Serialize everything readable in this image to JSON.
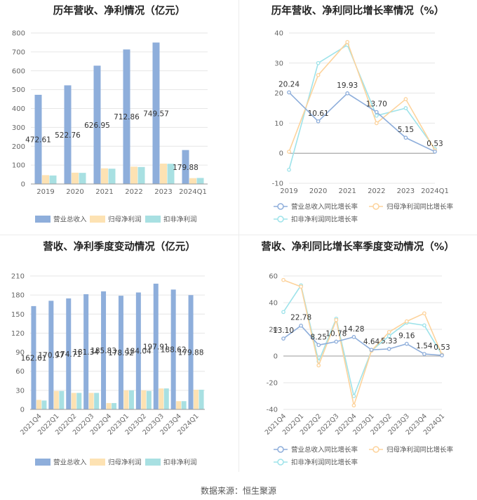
{
  "source": "数据来源：恒生聚源",
  "colors": {
    "revenue": "#8eaedb",
    "netprofit": "#fde2b3",
    "deducted": "#a8e0e2",
    "line_revenue": "#8eaedb",
    "line_netprofit": "#fdd39c",
    "line_deducted": "#9ee3ea"
  },
  "chart_data": [
    {
      "type": "bar",
      "title": "历年营收、净利情况（亿元）",
      "categories": [
        "2019",
        "2020",
        "2021",
        "2022",
        "2023",
        "2024Q1"
      ],
      "ylim": [
        0,
        800
      ],
      "yticks": [
        0,
        100,
        200,
        300,
        400,
        500,
        600,
        700,
        800
      ],
      "series": [
        {
          "name": "营业总收入",
          "values": [
            472.61,
            522.76,
            626.95,
            712.86,
            749.57,
            179.88
          ],
          "labels": [
            "472.61",
            "522.76",
            "626.95",
            "712.86",
            "749.57",
            "179.88"
          ]
        },
        {
          "name": "归母净利润",
          "values": [
            47,
            60,
            83,
            92,
            108,
            31
          ]
        },
        {
          "name": "扣非净利润",
          "values": [
            45,
            59,
            81,
            90,
            107,
            32
          ]
        }
      ]
    },
    {
      "type": "line",
      "title": "历年营收、净利同比增长率情况（%）",
      "categories": [
        "2019",
        "2020",
        "2021",
        "2022",
        "2023",
        "2024Q1"
      ],
      "ylim": [
        -10,
        40
      ],
      "yticks": [
        -10,
        0,
        10,
        20,
        30,
        40
      ],
      "series": [
        {
          "name": "营业总收入同比增长率",
          "values": [
            20.24,
            10.61,
            19.93,
            13.7,
            5.15,
            0.53
          ],
          "labels": [
            "20.24",
            "10.61",
            "19.93",
            "13.70",
            "5.15",
            "0.53"
          ]
        },
        {
          "name": "归母净利润同比增长率",
          "values": [
            0.5,
            26,
            37,
            10,
            18,
            1
          ]
        },
        {
          "name": "扣非净利润同比增长率",
          "values": [
            -5.5,
            30,
            36,
            12.5,
            15,
            1.5
          ]
        }
      ]
    },
    {
      "type": "bar",
      "title": "营收、净利季度变动情况（亿元）",
      "categories": [
        "2021Q4",
        "2022Q1",
        "2022Q2",
        "2022Q3",
        "2022Q4",
        "2023Q1",
        "2023Q2",
        "2023Q3",
        "2023Q4",
        "2024Q1"
      ],
      "ylim": [
        0,
        210
      ],
      "yticks": [
        0,
        30,
        60,
        90,
        120,
        150,
        180,
        210
      ],
      "series": [
        {
          "name": "营业总收入",
          "values": [
            162.61,
            170.97,
            174.71,
            181.34,
            185.83,
            178.92,
            184.04,
            197.91,
            188.62,
            179.88
          ],
          "labels": [
            "162.61",
            "170.97",
            "174.71",
            "181.34",
            "185.83",
            "178.92",
            "184.04",
            "197.91",
            "188.62",
            "179.88"
          ]
        },
        {
          "name": "归母净利润",
          "values": [
            15,
            29,
            26,
            26,
            10,
            30,
            30,
            33,
            13,
            31
          ]
        },
        {
          "name": "扣非净利润",
          "values": [
            14,
            29,
            26,
            26,
            10,
            30,
            29,
            33,
            13,
            31
          ]
        }
      ]
    },
    {
      "type": "line",
      "title": "营收、净利同比增长率季度变动情况（%）",
      "categories": [
        "2021Q4",
        "2022Q1",
        "2022Q2",
        "2022Q3",
        "2022Q4",
        "2023Q1",
        "2023Q2",
        "2023Q3",
        "2023Q4",
        "2024Q1"
      ],
      "ylim": [
        -40,
        60
      ],
      "yticks": [
        -40,
        -20,
        0,
        20,
        40,
        60
      ],
      "series": [
        {
          "name": "营业总收入同比增长率",
          "values": [
            13.1,
            22.78,
            8.25,
            10.78,
            14.28,
            4.64,
            5.33,
            9.16,
            1.54,
            0.53
          ],
          "labels": [
            "13.10",
            "22.78",
            "8.25",
            "10.78",
            "14.28",
            "4.64",
            "5.33",
            "9.16",
            "1.54",
            "0.53"
          ]
        },
        {
          "name": "归母净利润同比增长率",
          "values": [
            57,
            52,
            -7,
            27,
            -37,
            4,
            18,
            26,
            32,
            1
          ]
        },
        {
          "name": "扣非净利润同比增长率",
          "values": [
            33,
            53,
            -4,
            28,
            -30,
            4,
            15,
            25,
            23,
            1
          ]
        }
      ]
    }
  ]
}
